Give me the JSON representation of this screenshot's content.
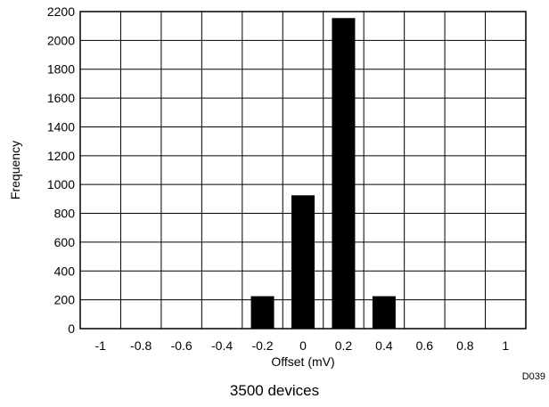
{
  "chart_data": {
    "type": "bar",
    "title": "",
    "xlabel": "Offset (mV)",
    "ylabel": "Frequency",
    "xlim": [
      -1.1,
      1.1
    ],
    "ylim": [
      0,
      2200
    ],
    "x_ticks": [
      -1,
      -0.8,
      -0.6,
      -0.4,
      -0.2,
      0,
      0.2,
      0.4,
      0.6,
      0.8,
      1
    ],
    "x_tick_labels": [
      "-1",
      "-0.8",
      "-0.6",
      "-0.4",
      "-0.2",
      "0",
      "0.2",
      "0.4",
      "0.6",
      "0.8",
      "1"
    ],
    "y_ticks": [
      0,
      200,
      400,
      600,
      800,
      1000,
      1200,
      1400,
      1600,
      1800,
      2000,
      2200
    ],
    "y_tick_labels": [
      "0",
      "200",
      "400",
      "600",
      "800",
      "1000",
      "1200",
      "1400",
      "1600",
      "1800",
      "2000",
      "2200"
    ],
    "categories": [
      "-1",
      "-0.8",
      "-0.6",
      "-0.4",
      "-0.2",
      "0",
      "0.2",
      "0.4",
      "0.6",
      "0.8",
      "1"
    ],
    "x": [
      -1,
      -0.8,
      -0.6,
      -0.4,
      -0.2,
      0,
      0.2,
      0.4,
      0.6,
      0.8,
      1
    ],
    "values": [
      0,
      0,
      0,
      0,
      225,
      925,
      2155,
      225,
      0,
      0,
      0
    ],
    "grid": true,
    "bar_color": "#000000",
    "grid_color": "#000000",
    "figure_id": "D039",
    "caption": "3500 devices"
  }
}
